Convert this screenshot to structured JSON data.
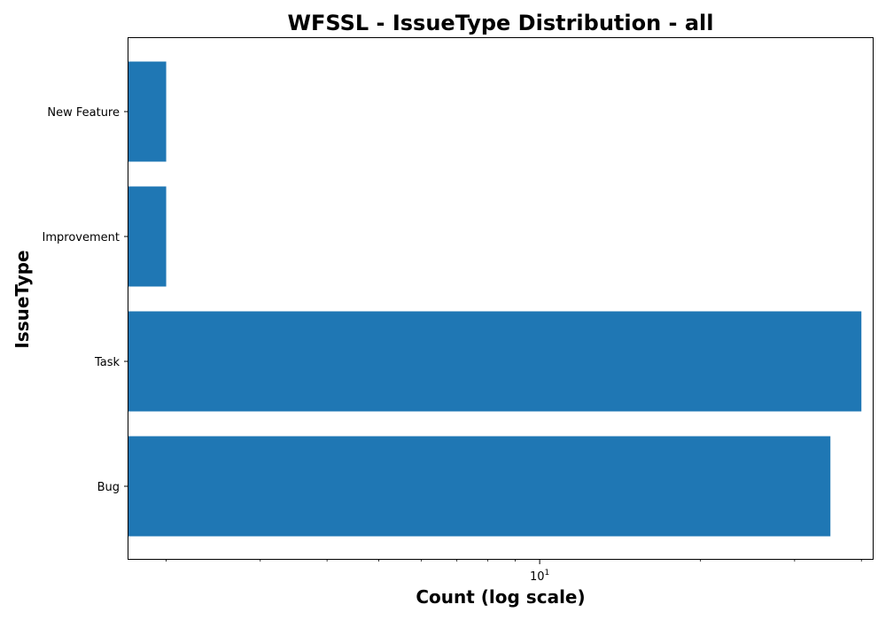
{
  "chart_data": {
    "type": "bar",
    "orientation": "horizontal",
    "title": "WFSSL - IssueType Distribution - all",
    "xlabel": "Count (log scale)",
    "ylabel": "IssueType",
    "x_scale": "log",
    "x_tick_label": {
      "base": "10",
      "exponent": "1"
    },
    "xlim": [
      1.7,
      42
    ],
    "categories": [
      "Bug",
      "Task",
      "Improvement",
      "New Feature"
    ],
    "values": [
      35,
      40,
      2,
      2
    ],
    "bar_color": "#1f77b4",
    "grid": false,
    "legend": "none"
  }
}
